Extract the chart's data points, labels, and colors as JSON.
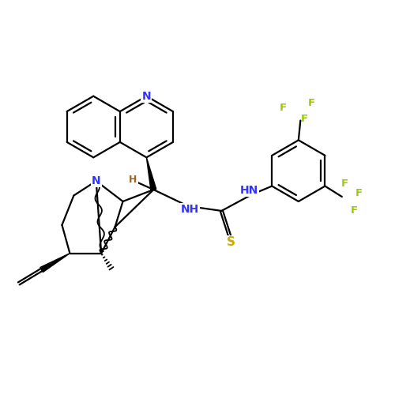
{
  "background_color": "#ffffff",
  "atom_colors": {
    "N": "#3333ff",
    "S": "#ccaa00",
    "F": "#99cc00",
    "H": "#996633",
    "C": "#000000"
  },
  "bond_color": "#000000",
  "bond_width": 1.6,
  "fig_size": [
    5.0,
    5.0
  ],
  "dpi": 100,
  "xlim": [
    0,
    10
  ],
  "ylim": [
    0,
    10
  ]
}
